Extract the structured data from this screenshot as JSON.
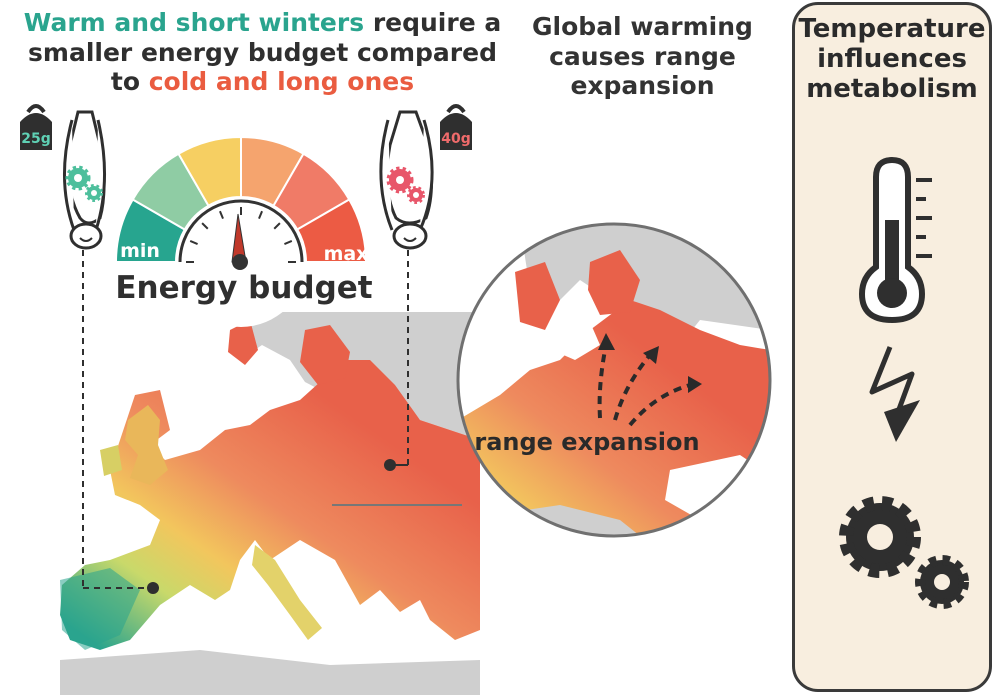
{
  "headline": {
    "part1": "Warm and short winters",
    "part2": " require a smaller energy budget compared to ",
    "part3": "cold and long ones"
  },
  "warming_text": "Global warming causes range expansion",
  "gauge": {
    "min_label": "min",
    "max_label": "max",
    "title": "Energy budget",
    "colors": [
      "#27a58f",
      "#8fcca4",
      "#f6cf62",
      "#f5a46e",
      "#f07b67",
      "#ec5b44"
    ]
  },
  "bats": {
    "left_weight": "25g",
    "right_weight": "40g",
    "left_gear_color": "#4dbf9c",
    "right_gear_color": "#e8566a"
  },
  "map": {
    "zoom_label": "range expansion"
  },
  "panel": {
    "title": "Temperature influences metabolism",
    "icons": [
      "thermometer-icon",
      "lightning-icon",
      "gears-icon"
    ]
  },
  "colors": {
    "teal": "#2aa48e",
    "red": "#ea5c40",
    "panel_bg": "#f8eedf"
  }
}
